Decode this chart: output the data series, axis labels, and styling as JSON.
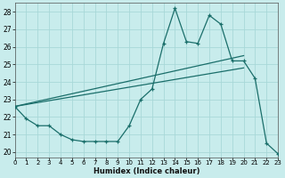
{
  "xlabel": "Humidex (Indice chaleur)",
  "xlim": [
    0,
    23
  ],
  "ylim": [
    19.7,
    28.5
  ],
  "xticks": [
    0,
    1,
    2,
    3,
    4,
    5,
    6,
    7,
    8,
    9,
    10,
    11,
    12,
    13,
    14,
    15,
    16,
    17,
    18,
    19,
    20,
    21,
    22,
    23
  ],
  "yticks": [
    20,
    21,
    22,
    23,
    24,
    25,
    26,
    27,
    28
  ],
  "background_color": "#c8ecec",
  "grid_color": "#a8d8d8",
  "line_color": "#1a6e6a",
  "line1_x": [
    0,
    1,
    2,
    3,
    4,
    5,
    6,
    7,
    8,
    9,
    10,
    11,
    12,
    13,
    14,
    15,
    16,
    17,
    18,
    19,
    20,
    21,
    22,
    23
  ],
  "line1_y": [
    22.6,
    21.9,
    21.5,
    21.5,
    21.0,
    20.7,
    20.6,
    20.6,
    20.6,
    20.6,
    21.5,
    23.0,
    23.6,
    26.2,
    28.2,
    26.3,
    26.2,
    27.8,
    27.3,
    25.2,
    25.2,
    24.2,
    20.5,
    19.9
  ],
  "line2_x": [
    0,
    20
  ],
  "line2_y": [
    22.6,
    25.5
  ],
  "line3_x": [
    0,
    20
  ],
  "line3_y": [
    22.6,
    24.8
  ]
}
